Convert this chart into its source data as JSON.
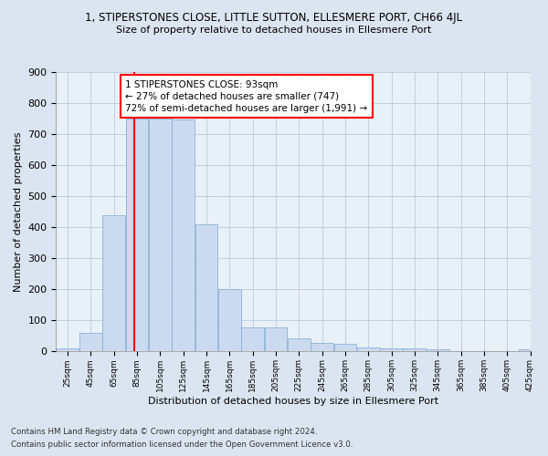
{
  "title": "1, STIPERSTONES CLOSE, LITTLE SUTTON, ELLESMERE PORT, CH66 4JL",
  "subtitle": "Size of property relative to detached houses in Ellesmere Port",
  "xlabel": "Distribution of detached houses by size in Ellesmere Port",
  "ylabel": "Number of detached properties",
  "footnote1": "Contains HM Land Registry data © Crown copyright and database right 2024.",
  "footnote2": "Contains public sector information licensed under the Open Government Licence v3.0.",
  "bar_color": "#ccdaf0",
  "bar_edge_color": "#7aaad0",
  "grid_color": "#bbccdd",
  "bg_color": "#dbe5f1",
  "plot_bg_color": "#e8f0f8",
  "red_line_x": 93,
  "annotation_text": "1 STIPERSTONES CLOSE: 93sqm\n← 27% of detached houses are smaller (747)\n72% of semi-detached houses are larger (1,991) →",
  "bins_left": [
    25,
    45,
    65,
    85,
    105,
    125,
    145,
    165,
    185,
    205,
    225,
    245,
    265,
    285,
    305,
    325,
    345,
    365,
    385,
    405,
    425
  ],
  "values": [
    10,
    60,
    440,
    750,
    750,
    748,
    410,
    200,
    78,
    78,
    42,
    28,
    25,
    12,
    10,
    10,
    8,
    2,
    2,
    2,
    8
  ],
  "bin_width": 20,
  "ylim": [
    0,
    900
  ],
  "yticks": [
    0,
    100,
    200,
    300,
    400,
    500,
    600,
    700,
    800,
    900
  ],
  "xlim_left": 25,
  "xlim_right": 435
}
